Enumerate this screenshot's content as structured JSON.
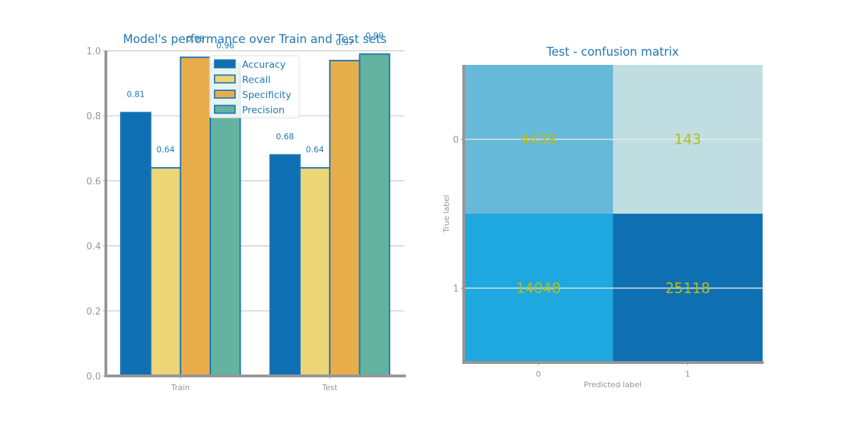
{
  "colors": {
    "title": "#1f77b4",
    "axis": "#969696",
    "spine": "#969696",
    "grid": "#c8c8c8",
    "bar_edge": "#1f77b4",
    "value_label": "#1f77b4",
    "cell_text": "#b6bd1a",
    "cell_line": "#e6e6e6"
  },
  "chart_data": [
    {
      "type": "bar",
      "title": "Model's performance over Train and Test sets",
      "xlabel": "",
      "ylabel": "",
      "categories": [
        "Train",
        "Test"
      ],
      "ylim": [
        0,
        1.0
      ],
      "yticks": [
        "0.0",
        "0.2",
        "0.4",
        "0.6",
        "0.8",
        "1.0"
      ],
      "grid": true,
      "legend": "top-center",
      "series": [
        {
          "name": "Accuracy",
          "color": "#0e70b2",
          "values": [
            0.81,
            0.68
          ],
          "labels": [
            "0.81",
            "0.68"
          ]
        },
        {
          "name": "Recall",
          "color": "#ecd576",
          "values": [
            0.64,
            0.64
          ],
          "labels": [
            "0.64",
            "0.64"
          ]
        },
        {
          "name": "Specificity",
          "color": "#e8ad4b",
          "values": [
            0.98,
            0.97
          ],
          "labels": [
            "0.98",
            "0.97"
          ]
        },
        {
          "name": "Precision",
          "color": "#64b3a0",
          "values": [
            0.96,
            0.99
          ],
          "labels": [
            "0.96",
            "0.99"
          ]
        }
      ]
    },
    {
      "type": "heatmap",
      "title": "Test - confusion matrix",
      "xlabel": "Predicted label",
      "ylabel": "True label",
      "x_categories": [
        "0",
        "1"
      ],
      "y_categories": [
        "0",
        "1"
      ],
      "values": [
        [
          4438,
          143
        ],
        [
          14048,
          25118
        ]
      ],
      "cell_colors": [
        [
          "#67b9d9",
          "#c0dee2"
        ],
        [
          "#1ea8df",
          "#0e70b2"
        ]
      ]
    }
  ]
}
